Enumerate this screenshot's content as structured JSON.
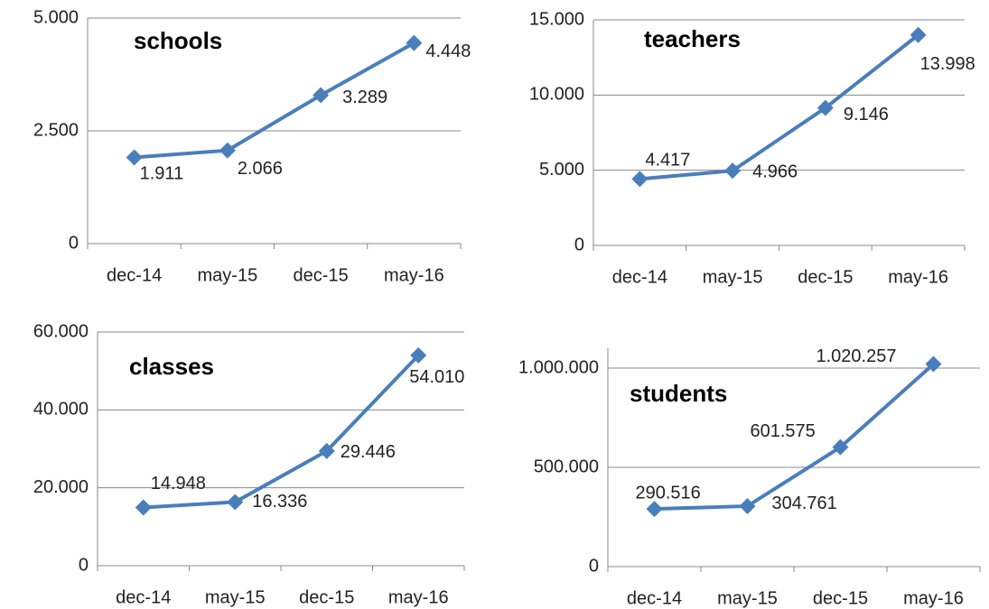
{
  "chart_data": [
    {
      "type": "line",
      "title": "schools",
      "categories": [
        "dec-14",
        "may-15",
        "dec-15",
        "may-16"
      ],
      "values": [
        1911,
        2066,
        3289,
        4448
      ],
      "value_labels": [
        "1.911",
        "2.066",
        "3.289",
        "4.448"
      ],
      "color": "#4a7ebb",
      "ylim": [
        0,
        5000
      ],
      "yticks": [
        0,
        {
          "value": 2500,
          "label": "2.500"
        },
        {
          "value": 5000,
          "label": "5.000"
        }
      ],
      "grid": true
    },
    {
      "type": "line",
      "title": "teachers",
      "categories": [
        "dec-14",
        "may-15",
        "dec-15",
        "may-16"
      ],
      "values": [
        4417,
        4966,
        9146,
        13998
      ],
      "value_labels": [
        "4.417",
        "4.966",
        "9.146",
        "13.998"
      ],
      "color": "#4a7ebb",
      "ylim": [
        0,
        15000
      ],
      "yticks": [
        0,
        {
          "value": 5000,
          "label": "5.000"
        },
        {
          "value": 10000,
          "label": "10.000"
        },
        {
          "value": 15000,
          "label": "15.000"
        }
      ],
      "grid": true
    },
    {
      "type": "line",
      "title": "classes",
      "categories": [
        "dec-14",
        "may-15",
        "dec-15",
        "may-16"
      ],
      "values": [
        14948,
        16336,
        29446,
        54010
      ],
      "value_labels": [
        "14.948",
        "16.336",
        "29.446",
        "54.010"
      ],
      "color": "#4a7ebb",
      "ylim": [
        0,
        60000
      ],
      "yticks": [
        0,
        {
          "value": 20000,
          "label": "20.000"
        },
        {
          "value": 40000,
          "label": "40.000"
        },
        {
          "value": 60000,
          "label": "60.000"
        }
      ],
      "grid": true
    },
    {
      "type": "line",
      "title": "students",
      "categories": [
        "dec-14",
        "may-15",
        "dec-15",
        "may-16"
      ],
      "values": [
        290516,
        304761,
        601575,
        1020257
      ],
      "value_labels": [
        "290.516",
        "304.761",
        "601.575",
        "1.020.257"
      ],
      "color": "#4a7ebb",
      "ylim": [
        0,
        1100000
      ],
      "yticks": [
        0,
        {
          "value": 500000,
          "label": "500.000"
        },
        {
          "value": 1000000,
          "label": "1.000.000"
        }
      ],
      "grid": true
    }
  ]
}
